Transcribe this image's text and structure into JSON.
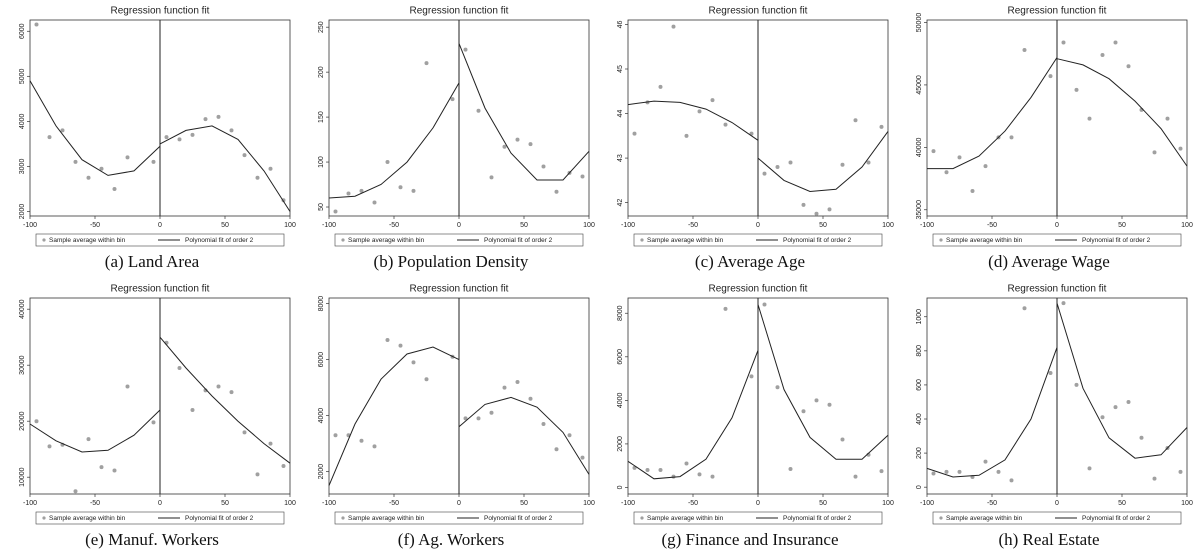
{
  "chart_data": [
    {
      "type": "rd",
      "title": "Regression function fit",
      "caption": "(a) Land Area",
      "xlim": [
        -100,
        100
      ],
      "xticks": [
        -100,
        -50,
        0,
        50,
        100
      ],
      "ylim": [
        1900,
        6250
      ],
      "yticks": [
        2000,
        3000,
        4000,
        5000,
        6000
      ],
      "cutoff": 0,
      "points": {
        "name": "Sample average within bin",
        "color": "#a0a0a0",
        "x": [
          -95,
          -85,
          -75,
          -65,
          -55,
          -45,
          -35,
          -25,
          -5,
          5,
          15,
          25,
          35,
          45,
          55,
          65,
          75,
          85,
          95
        ],
        "y": [
          6150,
          3650,
          3800,
          3100,
          2750,
          2950,
          2500,
          3200,
          3100,
          3650,
          3600,
          3700,
          4050,
          4100,
          3800,
          3250,
          2750,
          2950,
          2250
        ]
      },
      "fit": {
        "name": "Polynomial fit of order 2",
        "color": "#222",
        "x": [
          -100,
          -80,
          -60,
          -40,
          -20,
          0,
          null,
          0,
          20,
          40,
          60,
          80,
          100
        ],
        "y": [
          4900,
          3900,
          3150,
          2800,
          2900,
          3450,
          null,
          3500,
          3800,
          3900,
          3600,
          2900,
          2000
        ]
      }
    },
    {
      "type": "rd",
      "title": "Regression function fit",
      "caption": "(b) Population Density",
      "xlim": [
        -100,
        100
      ],
      "xticks": [
        -100,
        -50,
        0,
        50,
        100
      ],
      "ylim": [
        40,
        258
      ],
      "yticks": [
        50,
        100,
        150,
        200,
        250
      ],
      "cutoff": 0,
      "points": {
        "name": "Sample average within bin",
        "color": "#a0a0a0",
        "x": [
          -95,
          -85,
          -75,
          -65,
          -55,
          -45,
          -35,
          -25,
          -5,
          5,
          15,
          25,
          35,
          45,
          55,
          65,
          75,
          85,
          95
        ],
        "y": [
          45,
          65,
          68,
          55,
          100,
          72,
          68,
          210,
          170,
          225,
          157,
          83,
          117,
          125,
          120,
          95,
          67,
          88,
          84
        ]
      },
      "fit": {
        "name": "Polynomial fit of order 2",
        "color": "#222",
        "x": [
          -100,
          -80,
          -60,
          -40,
          -20,
          0,
          null,
          0,
          20,
          40,
          60,
          80,
          100
        ],
        "y": [
          60,
          62,
          75,
          100,
          138,
          188,
          null,
          232,
          160,
          110,
          80,
          80,
          112
        ]
      }
    },
    {
      "type": "rd",
      "title": "Regression function fit",
      "caption": "(c) Average Age",
      "xlim": [
        -100,
        100
      ],
      "xticks": [
        -100,
        -50,
        0,
        50,
        100
      ],
      "ylim": [
        41.7,
        46.1
      ],
      "yticks": [
        42,
        43,
        44,
        45,
        46
      ],
      "cutoff": 0,
      "points": {
        "name": "Sample average within bin",
        "color": "#a0a0a0",
        "x": [
          -95,
          -85,
          -75,
          -65,
          -55,
          -45,
          -35,
          -25,
          -5,
          5,
          15,
          25,
          35,
          45,
          55,
          65,
          75,
          85,
          95
        ],
        "y": [
          43.55,
          44.25,
          44.6,
          45.95,
          43.5,
          44.05,
          44.3,
          43.75,
          43.55,
          42.65,
          42.8,
          42.9,
          41.95,
          41.75,
          41.85,
          42.85,
          43.85,
          42.9,
          43.7
        ]
      },
      "fit": {
        "name": "Polynomial fit of order 2",
        "color": "#222",
        "x": [
          -100,
          -80,
          -60,
          -40,
          -20,
          0,
          null,
          0,
          20,
          40,
          60,
          80,
          100
        ],
        "y": [
          44.2,
          44.28,
          44.25,
          44.1,
          43.8,
          43.4,
          null,
          43.0,
          42.5,
          42.25,
          42.3,
          42.8,
          43.6
        ]
      }
    },
    {
      "type": "rd",
      "title": "Regression function fit",
      "caption": "(d) Average Wage",
      "xlim": [
        -100,
        100
      ],
      "xticks": [
        -100,
        -50,
        0,
        50,
        100
      ],
      "ylim": [
        34500,
        50200
      ],
      "yticks": [
        35000,
        40000,
        45000,
        50000
      ],
      "cutoff": 0,
      "points": {
        "name": "Sample average within bin",
        "color": "#a0a0a0",
        "x": [
          -95,
          -85,
          -75,
          -65,
          -55,
          -45,
          -35,
          -25,
          -5,
          5,
          15,
          25,
          35,
          45,
          55,
          65,
          75,
          85,
          95
        ],
        "y": [
          39700,
          38000,
          39200,
          36500,
          38500,
          40800,
          40800,
          47800,
          45700,
          48400,
          44600,
          42300,
          47400,
          48400,
          46500,
          43000,
          39600,
          42300,
          39900
        ]
      },
      "fit": {
        "name": "Polynomial fit of order 2",
        "color": "#222",
        "x": [
          -100,
          -80,
          -60,
          -40,
          -20,
          0,
          null,
          0,
          20,
          40,
          60,
          80,
          100
        ],
        "y": [
          38300,
          38300,
          39300,
          41300,
          44000,
          47200,
          null,
          47100,
          46600,
          45500,
          43700,
          41500,
          38500
        ]
      }
    },
    {
      "type": "rd",
      "title": "Regression function fit",
      "caption": "(e) Manuf. Workers",
      "xlim": [
        -100,
        100
      ],
      "xticks": [
        -100,
        -50,
        0,
        50,
        100
      ],
      "ylim": [
        7000,
        42000
      ],
      "yticks": [
        10000,
        20000,
        30000,
        40000
      ],
      "cutoff": 0,
      "points": {
        "name": "Sample average within bin",
        "color": "#a0a0a0",
        "x": [
          -95,
          -85,
          -75,
          -65,
          -55,
          -45,
          -35,
          -25,
          -5,
          5,
          15,
          25,
          35,
          45,
          55,
          65,
          75,
          85,
          95
        ],
        "y": [
          20000,
          15500,
          15800,
          7500,
          16800,
          11800,
          11200,
          26200,
          19800,
          34000,
          29500,
          22000,
          25500,
          26200,
          25200,
          18000,
          10500,
          16000,
          12000
        ]
      },
      "fit": {
        "name": "Polynomial fit of order 2",
        "color": "#222",
        "x": [
          -100,
          -80,
          -60,
          -40,
          -20,
          0,
          null,
          0,
          20,
          40,
          60,
          80,
          100
        ],
        "y": [
          19500,
          16500,
          14500,
          14800,
          17500,
          22000,
          null,
          35000,
          29500,
          24500,
          20000,
          16000,
          12500
        ]
      }
    },
    {
      "type": "rd",
      "title": "Regression function fit",
      "caption": "(f) Ag. Workers",
      "xlim": [
        -100,
        100
      ],
      "xticks": [
        -100,
        -50,
        0,
        50,
        100
      ],
      "ylim": [
        1200,
        8200
      ],
      "yticks": [
        2000,
        4000,
        6000,
        8000
      ],
      "cutoff": 0,
      "points": {
        "name": "Sample average within bin",
        "color": "#a0a0a0",
        "x": [
          -95,
          -85,
          -75,
          -65,
          -55,
          -45,
          -35,
          -25,
          -5,
          5,
          15,
          25,
          35,
          45,
          55,
          65,
          75,
          85,
          95
        ],
        "y": [
          3300,
          3300,
          3100,
          2900,
          6700,
          6500,
          5900,
          5300,
          6100,
          3900,
          3900,
          4100,
          5000,
          5200,
          4600,
          3700,
          2800,
          3300,
          2500
        ]
      },
      "fit": {
        "name": "Polynomial fit of order 2",
        "color": "#222",
        "x": [
          -100,
          -80,
          -60,
          -40,
          -20,
          0,
          null,
          0,
          20,
          40,
          60,
          80,
          100
        ],
        "y": [
          1500,
          3700,
          5300,
          6200,
          6450,
          6000,
          null,
          3600,
          4400,
          4650,
          4300,
          3400,
          1900
        ]
      }
    },
    {
      "type": "rd",
      "title": "Regression function fit",
      "caption": "(g) Finance and Insurance",
      "xlim": [
        -100,
        100
      ],
      "xticks": [
        -100,
        -50,
        0,
        50,
        100
      ],
      "ylim": [
        -300,
        8700
      ],
      "yticks": [
        0,
        2000,
        4000,
        6000,
        8000
      ],
      "cutoff": 0,
      "points": {
        "name": "Sample average within bin",
        "color": "#a0a0a0",
        "x": [
          -95,
          -85,
          -75,
          -65,
          -55,
          -45,
          -35,
          -25,
          -5,
          5,
          15,
          25,
          35,
          45,
          55,
          65,
          75,
          85,
          95
        ],
        "y": [
          900,
          800,
          800,
          500,
          1100,
          600,
          500,
          8200,
          5100,
          8400,
          4600,
          850,
          3500,
          4000,
          3800,
          2200,
          500,
          1500,
          750
        ]
      },
      "fit": {
        "name": "Polynomial fit of order 2",
        "color": "#222",
        "x": [
          -100,
          -80,
          -60,
          -40,
          -20,
          0,
          null,
          0,
          20,
          40,
          60,
          80,
          100
        ],
        "y": [
          1200,
          400,
          500,
          1300,
          3200,
          6300,
          null,
          8400,
          4500,
          2300,
          1300,
          1300,
          2400
        ]
      }
    },
    {
      "type": "rd",
      "title": "Regression function fit",
      "caption": "(h) Real Estate",
      "xlim": [
        -100,
        100
      ],
      "xticks": [
        -100,
        -50,
        0,
        50,
        100
      ],
      "ylim": [
        -40,
        1110
      ],
      "yticks": [
        0,
        200,
        400,
        600,
        800,
        1000
      ],
      "cutoff": 0,
      "points": {
        "name": "Sample average within bin",
        "color": "#a0a0a0",
        "x": [
          -95,
          -85,
          -75,
          -65,
          -55,
          -45,
          -35,
          -25,
          -5,
          5,
          15,
          25,
          35,
          45,
          55,
          65,
          75,
          85,
          95
        ],
        "y": [
          80,
          90,
          90,
          60,
          150,
          90,
          40,
          1050,
          670,
          1080,
          600,
          110,
          410,
          470,
          500,
          290,
          50,
          230,
          90
        ]
      },
      "fit": {
        "name": "Polynomial fit of order 2",
        "color": "#222",
        "x": [
          -100,
          -80,
          -60,
          -40,
          -20,
          0,
          null,
          0,
          20,
          40,
          60,
          80,
          100
        ],
        "y": [
          110,
          60,
          70,
          160,
          400,
          820,
          null,
          1080,
          580,
          290,
          170,
          190,
          350
        ]
      }
    }
  ]
}
